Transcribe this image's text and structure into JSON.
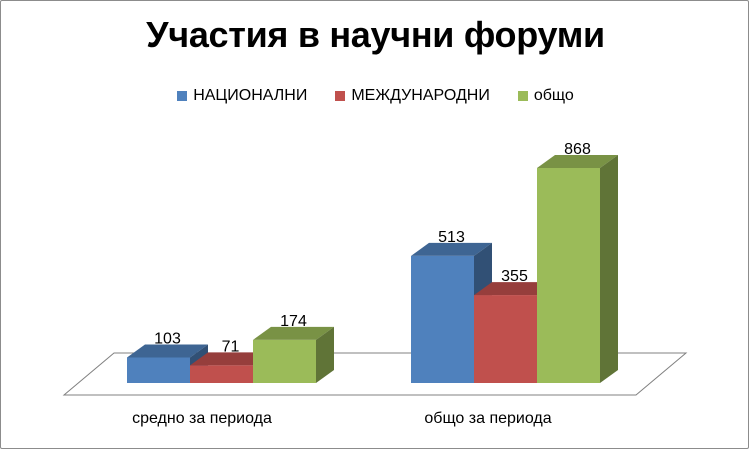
{
  "chart_data": {
    "type": "bar",
    "title": "Участия в научни форуми",
    "categories": [
      "средно за периода",
      "общо за периода"
    ],
    "series": [
      {
        "name": "НАЦИОНАЛНИ",
        "values": [
          103,
          513
        ],
        "color": "#4F81BD"
      },
      {
        "name": "МЕЖДУНАРОДНИ",
        "values": [
          71,
          355
        ],
        "color": "#C0504D"
      },
      {
        "name": "общо",
        "values": [
          174,
          868
        ],
        "color": "#9BBB59"
      }
    ],
    "xlabel": "",
    "ylabel": "",
    "ylim": [
      0,
      1000
    ],
    "grid": false,
    "legend_position": "top",
    "style": "3d-clustered-column"
  }
}
